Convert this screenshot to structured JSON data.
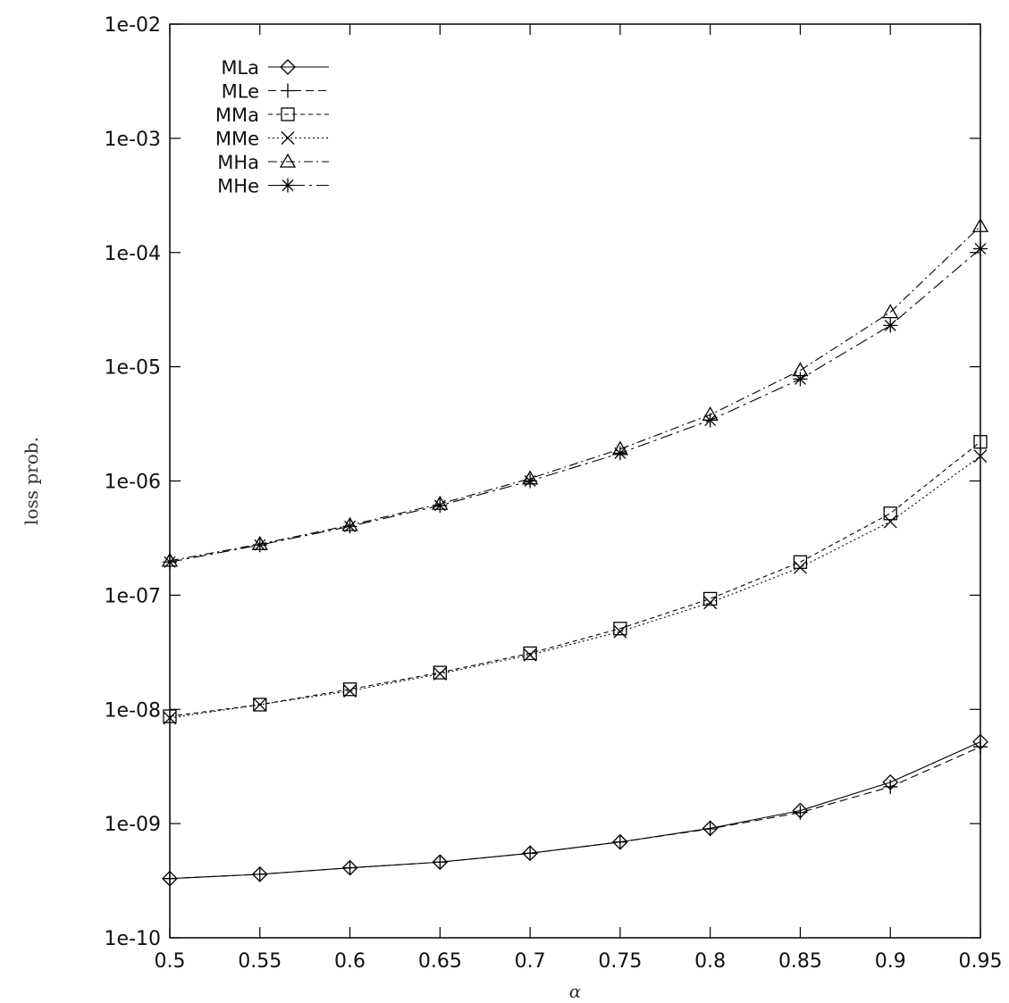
{
  "chart_data": {
    "type": "line",
    "title": "",
    "xlabel": "α",
    "ylabel": "loss prob.",
    "yscale": "log",
    "xlim": [
      0.5,
      0.95
    ],
    "ylim": [
      1e-10,
      0.01
    ],
    "grid": false,
    "legend_position": "top-left",
    "x_ticks": [
      "0.5",
      "0.55",
      "0.6",
      "0.65",
      "0.7",
      "0.75",
      "0.8",
      "0.85",
      "0.9",
      "0.95"
    ],
    "y_ticks": [
      "1e-10",
      "1e-09",
      "1e-08",
      "1e-07",
      "1e-06",
      "1e-05",
      "1e-04",
      "1e-03",
      "1e-02"
    ],
    "x": [
      0.5,
      0.55,
      0.6,
      0.65,
      0.7,
      0.75,
      0.8,
      0.85,
      0.9,
      0.95
    ],
    "series": [
      {
        "name": "MLa",
        "marker": "diamond",
        "dash": "solid",
        "values": [
          3.3e-10,
          3.6e-10,
          4.1e-10,
          4.6e-10,
          5.5e-10,
          6.9e-10,
          9.1e-10,
          1.3e-09,
          2.3e-09,
          5.2e-09
        ]
      },
      {
        "name": "MLe",
        "marker": "plus",
        "dash": "dashed",
        "values": [
          3.3e-10,
          3.6e-10,
          4.1e-10,
          4.6e-10,
          5.5e-10,
          6.9e-10,
          9e-10,
          1.25e-09,
          2.1e-09,
          4.7e-09
        ]
      },
      {
        "name": "MMa",
        "marker": "square",
        "dash": "short-dash",
        "values": [
          8.7e-09,
          1.1e-08,
          1.5e-08,
          2.1e-08,
          3.1e-08,
          5.1e-08,
          9.3e-08,
          1.95e-07,
          5.2e-07,
          2.2e-06
        ]
      },
      {
        "name": "MMe",
        "marker": "cross",
        "dash": "dotted",
        "values": [
          8.4e-09,
          1.1e-08,
          1.45e-08,
          2.05e-08,
          3e-08,
          4.8e-08,
          8.6e-08,
          1.75e-07,
          4.4e-07,
          1.65e-06
        ]
      },
      {
        "name": "MHa",
        "marker": "triangle",
        "dash": "dash-dot",
        "values": [
          2e-07,
          2.8e-07,
          4.1e-07,
          6.3e-07,
          1.05e-06,
          1.9e-06,
          3.8e-06,
          9.3e-06,
          3e-05,
          0.00017
        ]
      },
      {
        "name": "MHe",
        "marker": "star",
        "dash": "dash-dot-long",
        "values": [
          1.95e-07,
          2.75e-07,
          4e-07,
          6.1e-07,
          1e-06,
          1.75e-06,
          3.4e-06,
          7.8e-06,
          2.3e-05,
          0.000108
        ]
      }
    ]
  }
}
